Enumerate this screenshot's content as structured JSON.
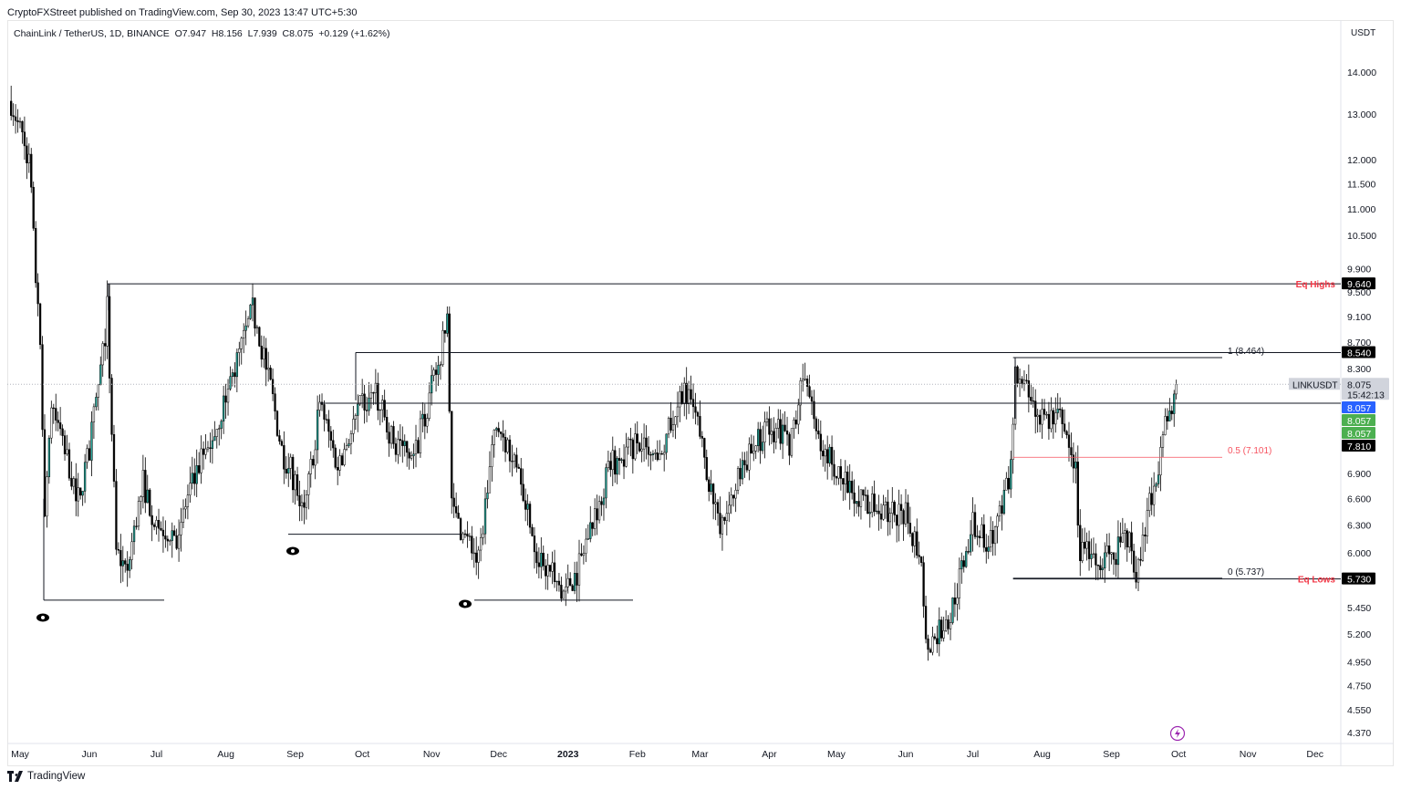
{
  "header": {
    "published": "CryptoFXStreet published on TradingView.com, Sep 30, 2023 13:47 UTC+5:30",
    "legend": "ChainLink / TetherUS, 1D, BINANCE  O7.947  H8.156  L7.939  C8.075  +0.129 (+1.62%)",
    "currency": "USDT"
  },
  "footer": {
    "brand": "TradingView"
  },
  "chart_data": {
    "type": "candlestick",
    "symbol": "LINKUSDT",
    "interval": "1D",
    "y_scale": "log",
    "ylim": [
      4.3,
      14.6
    ],
    "xlim": [
      "2022-04-27",
      "2023-12-31"
    ],
    "y_ticks": [
      "14.000",
      "13.000",
      "12.000",
      "11.500",
      "11.000",
      "10.500",
      "9.900",
      "9.500",
      "9.100",
      "8.700",
      "8.300",
      "6.900",
      "6.600",
      "6.300",
      "6.000",
      "5.450",
      "5.200",
      "4.950",
      "4.750",
      "4.550",
      "4.370"
    ],
    "x_ticks": [
      {
        "label": "May",
        "date": "2022-05-01"
      },
      {
        "label": "Jun",
        "date": "2022-06-01"
      },
      {
        "label": "Jul",
        "date": "2022-07-01"
      },
      {
        "label": "Aug",
        "date": "2022-08-01"
      },
      {
        "label": "Sep",
        "date": "2022-09-01"
      },
      {
        "label": "Oct",
        "date": "2022-10-01"
      },
      {
        "label": "Nov",
        "date": "2022-11-01"
      },
      {
        "label": "Dec",
        "date": "2022-12-01"
      },
      {
        "label": "2023",
        "date": "2023-01-01",
        "bold": true
      },
      {
        "label": "Feb",
        "date": "2023-02-01"
      },
      {
        "label": "Mar",
        "date": "2023-03-01"
      },
      {
        "label": "Apr",
        "date": "2023-04-01"
      },
      {
        "label": "May",
        "date": "2023-05-01"
      },
      {
        "label": "Jun",
        "date": "2023-06-01"
      },
      {
        "label": "Jul",
        "date": "2023-07-01"
      },
      {
        "label": "Aug",
        "date": "2023-08-01"
      },
      {
        "label": "Sep",
        "date": "2023-09-01"
      },
      {
        "label": "Oct",
        "date": "2023-10-01"
      },
      {
        "label": "Nov",
        "date": "2023-11-01"
      },
      {
        "label": "Dec",
        "date": "2023-12-01"
      }
    ],
    "approx_close_path": [
      [
        "2022-04-27",
        13.3
      ],
      [
        "2022-05-05",
        12.0
      ],
      [
        "2022-05-10",
        8.5
      ],
      [
        "2022-05-12",
        6.5
      ],
      [
        "2022-05-15",
        7.8
      ],
      [
        "2022-05-20",
        7.3
      ],
      [
        "2022-05-27",
        6.6
      ],
      [
        "2022-06-01",
        7.2
      ],
      [
        "2022-06-07",
        8.5
      ],
      [
        "2022-06-09",
        9.2
      ],
      [
        "2022-06-13",
        6.0
      ],
      [
        "2022-06-18",
        5.8
      ],
      [
        "2022-06-25",
        6.8
      ],
      [
        "2022-07-01",
        6.3
      ],
      [
        "2022-07-10",
        6.2
      ],
      [
        "2022-07-20",
        7.0
      ],
      [
        "2022-07-28",
        7.5
      ],
      [
        "2022-08-05",
        8.3
      ],
      [
        "2022-08-13",
        9.2
      ],
      [
        "2022-08-20",
        8.2
      ],
      [
        "2022-08-26",
        7.2
      ],
      [
        "2022-09-01",
        6.8
      ],
      [
        "2022-09-05",
        6.4
      ],
      [
        "2022-09-12",
        7.8
      ],
      [
        "2022-09-20",
        7.0
      ],
      [
        "2022-10-01",
        7.8
      ],
      [
        "2022-10-07",
        7.9
      ],
      [
        "2022-10-15",
        7.3
      ],
      [
        "2022-10-25",
        7.2
      ],
      [
        "2022-11-05",
        8.5
      ],
      [
        "2022-11-08",
        9.0
      ],
      [
        "2022-11-10",
        6.5
      ],
      [
        "2022-11-15",
        6.2
      ],
      [
        "2022-11-22",
        5.9
      ],
      [
        "2022-11-28",
        7.2
      ],
      [
        "2022-12-01",
        7.5
      ],
      [
        "2022-12-10",
        7.0
      ],
      [
        "2022-12-18",
        6.0
      ],
      [
        "2022-12-30",
        5.6
      ],
      [
        "2023-01-05",
        5.8
      ],
      [
        "2023-01-10",
        6.2
      ],
      [
        "2023-01-20",
        7.0
      ],
      [
        "2023-02-01",
        7.3
      ],
      [
        "2023-02-10",
        7.0
      ],
      [
        "2023-02-22",
        8.1
      ],
      [
        "2023-03-01",
        7.4
      ],
      [
        "2023-03-10",
        6.2
      ],
      [
        "2023-03-20",
        7.0
      ],
      [
        "2023-04-01",
        7.5
      ],
      [
        "2023-04-10",
        7.3
      ],
      [
        "2023-04-17",
        8.3
      ],
      [
        "2023-04-22",
        7.3
      ],
      [
        "2023-05-01",
        7.0
      ],
      [
        "2023-05-10",
        6.6
      ],
      [
        "2023-05-20",
        6.5
      ],
      [
        "2023-06-01",
        6.4
      ],
      [
        "2023-06-08",
        6.0
      ],
      [
        "2023-06-10",
        5.1
      ],
      [
        "2023-06-20",
        5.3
      ],
      [
        "2023-07-01",
        6.3
      ],
      [
        "2023-07-10",
        6.1
      ],
      [
        "2023-07-17",
        6.8
      ],
      [
        "2023-07-20",
        8.2
      ],
      [
        "2023-08-01",
        7.6
      ],
      [
        "2023-08-10",
        7.6
      ],
      [
        "2023-08-16",
        6.9
      ],
      [
        "2023-08-18",
        6.0
      ],
      [
        "2023-08-25",
        6.0
      ],
      [
        "2023-09-01",
        5.9
      ],
      [
        "2023-09-08",
        6.2
      ],
      [
        "2023-09-12",
        5.8
      ],
      [
        "2023-09-20",
        6.8
      ],
      [
        "2023-09-26",
        7.6
      ],
      [
        "2023-09-30",
        8.075
      ]
    ],
    "levels": [
      {
        "label": "Eq Highs",
        "price": 9.64,
        "from": "2022-06-09",
        "color": "#f23645"
      },
      {
        "label": "",
        "price": 8.54,
        "from": "2022-09-28"
      },
      {
        "label": "",
        "price": 7.81,
        "from": "2022-09-12"
      },
      {
        "label": "Eq Lows",
        "price": 5.73,
        "from": "2023-07-19",
        "color": "#f23645"
      }
    ],
    "fib": [
      {
        "label": "1 (8.464)",
        "price": 8.464
      },
      {
        "label": "0.5 (7.101)",
        "price": 7.101,
        "color": "#f7525f"
      },
      {
        "label": "0 (5.737)",
        "price": 5.737
      }
    ],
    "fib_range": [
      "2023-07-19",
      "2023-10-19"
    ],
    "price_labels": [
      {
        "text": "9.640",
        "price": 9.64,
        "bg": "#000000"
      },
      {
        "text": "8.540",
        "price": 8.54,
        "bg": "#000000"
      },
      {
        "text": "8.075",
        "sub": "15:42:13",
        "price": 8.075,
        "bg": "#d1d4dc",
        "fg": "#131722",
        "tag": "LINKUSDT"
      },
      {
        "text": "8.057",
        "bg": "#2962ff",
        "offset": 1
      },
      {
        "text": "8.057",
        "bg": "#4caf50",
        "offset": 2
      },
      {
        "text": "8.057",
        "bg": "#4caf50",
        "offset": 3
      },
      {
        "text": "7.810",
        "bg": "#000000",
        "offset": 4
      },
      {
        "text": "5.730",
        "price": 5.73,
        "bg": "#000000"
      }
    ],
    "colors": {
      "up": "#ffffff",
      "down": "#000000",
      "wick": "#000000"
    }
  }
}
